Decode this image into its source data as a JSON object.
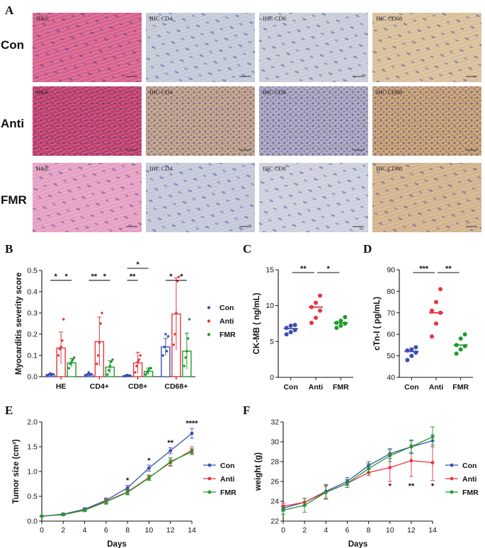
{
  "panel_letters": [
    "A",
    "B",
    "C",
    "D",
    "E",
    "F"
  ],
  "histology": {
    "rows": [
      "Con",
      "Anti",
      "FMR"
    ],
    "columns": [
      "H&E",
      "IHC CD4",
      "IHC CD8",
      "IHC CD68"
    ],
    "tile_colors": {
      "Con": [
        "#d8618e",
        "#c4c9d8",
        "#c8ccd8",
        "#d8c09a"
      ],
      "Anti": [
        "#c8406a",
        "#c2a287",
        "#a9a7be",
        "#c9a070"
      ],
      "FMR": [
        "#e69fc3",
        "#c5c8d9",
        "#cdd0dc",
        "#d3b38d"
      ]
    }
  },
  "chart_data": [
    {
      "id": "B",
      "type": "bar",
      "title": "",
      "xlabel": "",
      "ylabel": "Myocarditis severity score",
      "ylim": [
        0.0,
        0.5
      ],
      "yticks": [
        0.0,
        0.1,
        0.2,
        0.3,
        0.4,
        0.5
      ],
      "ytick_labels": [
        "0.0",
        "0.1",
        "0.2",
        "0.3",
        "0.4",
        "0.5"
      ],
      "categories": [
        "HE",
        "CD4+",
        "CD8+",
        "CD68+"
      ],
      "legend": "right",
      "series": [
        {
          "name": "Con",
          "color": "#3a4fb0",
          "values": [
            0.01,
            0.01,
            0.005,
            0.14
          ],
          "errors": [
            0.005,
            0.006,
            0.004,
            0.04
          ],
          "points": [
            [
              0.005,
              0.01,
              0.015,
              0.008,
              0.012
            ],
            [
              0.005,
              0.01,
              0.02,
              0.008,
              0.012
            ],
            [
              0.002,
              0.005,
              0.008,
              0.004,
              0.006
            ],
            [
              0.1,
              0.14,
              0.2,
              0.12,
              0.19
            ]
          ]
        },
        {
          "name": "Anti",
          "color": "#e8343f",
          "values": [
            0.135,
            0.165,
            0.065,
            0.295
          ],
          "errors": [
            0.075,
            0.115,
            0.05,
            0.17
          ],
          "points": [
            [
              0.1,
              0.13,
              0.14,
              0.17,
              0.27
            ],
            [
              0.06,
              0.1,
              0.16,
              0.25,
              0.3
            ],
            [
              0.02,
              0.05,
              0.07,
              0.08,
              0.1
            ],
            [
              0.15,
              0.2,
              0.3,
              0.45,
              0.47
            ]
          ]
        },
        {
          "name": "FMR",
          "color": "#1e9a2d",
          "values": [
            0.065,
            0.045,
            0.025,
            0.12
          ],
          "errors": [
            0.02,
            0.03,
            0.015,
            0.085
          ],
          "points": [
            [
              0.04,
              0.06,
              0.07,
              0.08,
              0.09
            ],
            [
              0.01,
              0.03,
              0.05,
              0.07,
              0.08
            ],
            [
              0.01,
              0.02,
              0.03,
              0.04,
              0.04
            ],
            [
              0.05,
              0.09,
              0.12,
              0.18,
              0.27
            ]
          ]
        }
      ],
      "significance": [
        {
          "category": "HE",
          "pair": [
            "Con",
            "Anti"
          ],
          "label": "*"
        },
        {
          "category": "HE",
          "pair": [
            "Anti",
            "FMR"
          ],
          "label": "*"
        },
        {
          "category": "CD4+",
          "pair": [
            "Con",
            "Anti"
          ],
          "label": "**"
        },
        {
          "category": "CD4+",
          "pair": [
            "Anti",
            "FMR"
          ],
          "label": "*"
        },
        {
          "category": "CD8+",
          "pair": [
            "Con",
            "Anti"
          ],
          "label": "**"
        },
        {
          "category": "CD8+",
          "pair": [
            "Con",
            "FMR"
          ],
          "label": "*"
        },
        {
          "category": "CD68+",
          "pair": [
            "Con",
            "Anti"
          ],
          "label": "*"
        },
        {
          "category": "CD68+",
          "pair": [
            "Anti",
            "FMR"
          ],
          "label": "*"
        }
      ]
    },
    {
      "id": "C",
      "type": "scatter",
      "title": "",
      "xlabel": "",
      "ylabel": "CK-MB ( ng/mL)",
      "ylim": [
        0,
        15
      ],
      "yticks": [
        0,
        5,
        10,
        15
      ],
      "ytick_labels": [
        "0",
        "5",
        "10",
        "15"
      ],
      "categories": [
        "Con",
        "Anti",
        "FMR"
      ],
      "series": [
        {
          "name": "Con",
          "color": "#3a4fb0",
          "mean": 6.8,
          "points": [
            6.0,
            6.3,
            6.6,
            6.9,
            7.2,
            7.3
          ]
        },
        {
          "name": "Anti",
          "color": "#e8343f",
          "mean": 9.8,
          "points": [
            7.6,
            8.3,
            9.3,
            9.8,
            10.4,
            11.4
          ]
        },
        {
          "name": "FMR",
          "color": "#1e9a2d",
          "mean": 7.6,
          "points": [
            6.9,
            7.2,
            7.5,
            7.6,
            7.9,
            8.4
          ]
        }
      ],
      "significance": [
        {
          "pair": [
            "Con",
            "Anti"
          ],
          "label": "**"
        },
        {
          "pair": [
            "Anti",
            "FMR"
          ],
          "label": "*"
        }
      ]
    },
    {
      "id": "D",
      "type": "scatter",
      "title": "",
      "xlabel": "",
      "ylabel": "cTn-I ( pg/mL)",
      "ylim": [
        40,
        90
      ],
      "yticks": [
        40,
        50,
        60,
        70,
        80,
        90
      ],
      "ytick_labels": [
        "40",
        "50",
        "60",
        "70",
        "80",
        "90"
      ],
      "categories": [
        "Con",
        "Anti",
        "FMR"
      ],
      "series": [
        {
          "name": "Con",
          "color": "#3a4fb0",
          "mean": 52,
          "points": [
            48,
            50,
            51.5,
            52.5,
            53,
            54
          ]
        },
        {
          "name": "Anti",
          "color": "#e8343f",
          "mean": 70,
          "points": [
            59,
            65,
            70,
            71,
            75,
            81
          ]
        },
        {
          "name": "FMR",
          "color": "#1e9a2d",
          "mean": 55,
          "points": [
            51,
            53,
            54.5,
            55,
            58,
            60
          ]
        }
      ],
      "significance": [
        {
          "pair": [
            "Con",
            "Anti"
          ],
          "label": "***"
        },
        {
          "pair": [
            "Anti",
            "FMR"
          ],
          "label": "**"
        }
      ]
    },
    {
      "id": "E",
      "type": "line",
      "title": "",
      "xlabel": "Days",
      "ylabel": "Tumor size (cm³)",
      "xlim": [
        0,
        14
      ],
      "ylim": [
        0.0,
        2.0
      ],
      "xticks": [
        0,
        2,
        4,
        6,
        8,
        10,
        12,
        14
      ],
      "xtick_labels": [
        "0",
        "2",
        "4",
        "6",
        "8",
        "10",
        "12",
        "14"
      ],
      "yticks": [
        0.0,
        0.5,
        1.0,
        1.5,
        2.0
      ],
      "ytick_labels": [
        "0.0",
        "0.5",
        "1.0",
        "1.5",
        "2.0"
      ],
      "legend": "right",
      "x": [
        0,
        2,
        4,
        6,
        8,
        10,
        12,
        14
      ],
      "series": [
        {
          "name": "Con",
          "color": "#3a4fb0",
          "values": [
            0.1,
            0.14,
            0.24,
            0.42,
            0.67,
            1.07,
            1.42,
            1.77
          ],
          "errors": [
            0.01,
            0.02,
            0.03,
            0.05,
            0.05,
            0.06,
            0.06,
            0.1
          ]
        },
        {
          "name": "Anti",
          "color": "#e8343f",
          "values": [
            0.1,
            0.13,
            0.22,
            0.4,
            0.59,
            0.88,
            1.18,
            1.43
          ],
          "errors": [
            0.01,
            0.02,
            0.03,
            0.05,
            0.05,
            0.05,
            0.07,
            0.07
          ]
        },
        {
          "name": "FMR",
          "color": "#1e9a2d",
          "values": [
            0.1,
            0.13,
            0.22,
            0.39,
            0.58,
            0.87,
            1.2,
            1.4
          ],
          "errors": [
            0.01,
            0.02,
            0.03,
            0.05,
            0.05,
            0.05,
            0.08,
            0.06
          ]
        }
      ],
      "annotations": [
        {
          "x": 8,
          "y": 0.77,
          "label": "*"
        },
        {
          "x": 10,
          "y": 1.17,
          "label": "*"
        },
        {
          "x": 12,
          "y": 1.53,
          "label": "**"
        },
        {
          "x": 14,
          "y": 1.92,
          "label": "****"
        }
      ]
    },
    {
      "id": "F",
      "type": "line",
      "title": "",
      "xlabel": "Days",
      "ylabel": "weight (g)",
      "xlim": [
        0,
        14
      ],
      "ylim": [
        22,
        32
      ],
      "xticks": [
        0,
        2,
        4,
        6,
        8,
        10,
        12,
        14
      ],
      "xtick_labels": [
        "0",
        "2",
        "4",
        "6",
        "8",
        "10",
        "12",
        "14"
      ],
      "yticks": [
        22,
        24,
        26,
        28,
        30,
        32
      ],
      "ytick_labels": [
        "22",
        "24",
        "26",
        "28",
        "30",
        "32"
      ],
      "legend": "right",
      "x": [
        0,
        2,
        4,
        6,
        8,
        10,
        12,
        14
      ],
      "series": [
        {
          "name": "Con",
          "color": "#3a4fb0",
          "values": [
            23.3,
            23.9,
            25.0,
            26.0,
            27.6,
            28.8,
            29.5,
            30.1
          ],
          "errors": [
            0.3,
            0.4,
            0.7,
            0.4,
            0.4,
            0.5,
            0.6,
            0.6
          ]
        },
        {
          "name": "Anti",
          "color": "#e8343f",
          "values": [
            23.5,
            23.9,
            24.9,
            25.8,
            26.9,
            27.4,
            28.1,
            27.9
          ],
          "errors": [
            0.3,
            0.4,
            0.6,
            0.4,
            0.3,
            1.4,
            1.6,
            1.8
          ]
        },
        {
          "name": "FMR",
          "color": "#1e9a2d",
          "values": [
            23.1,
            23.6,
            24.9,
            25.8,
            27.3,
            28.6,
            29.5,
            30.5
          ],
          "errors": [
            0.4,
            0.7,
            0.7,
            0.4,
            0.5,
            0.6,
            0.7,
            1.0
          ]
        }
      ],
      "annotations": [
        {
          "x": 10,
          "y": 25.3,
          "label": "*"
        },
        {
          "x": 12,
          "y": 25.3,
          "label": "**"
        },
        {
          "x": 14,
          "y": 25.3,
          "label": "*"
        }
      ]
    }
  ]
}
